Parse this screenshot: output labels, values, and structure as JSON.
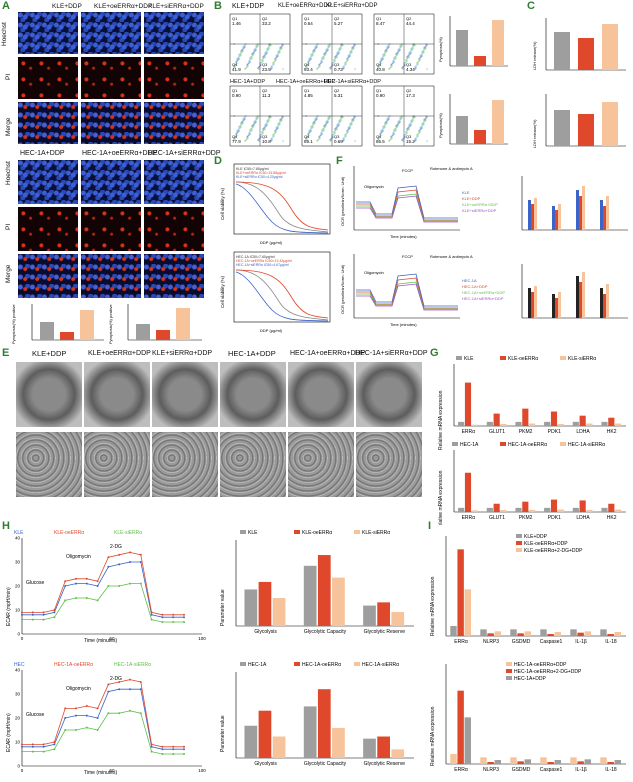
{
  "panels": {
    "A": {
      "label": "A",
      "cols_kle": [
        "KLE+DDP",
        "KLE+oeERRα+DDP",
        "KLE+siERRα+DDP"
      ],
      "cols_hec": [
        "HEC-1A+DDP",
        "HEC-1A+oeERRα+DDP",
        "HEC-1A+siERRα+DDP"
      ],
      "rows": [
        "Hoechst",
        "PI",
        "Merge"
      ],
      "bar_ylabel": "Pyroptosis(%) positive"
    },
    "B": {
      "label": "B",
      "titles_kle": [
        "KLE+DDP",
        "KLE+oeERRα+DDP",
        "KLE+siERRα+DDP"
      ],
      "titles_hec": [
        "HEC-1A+DDP",
        "HEC-1A+oeERRα+DDP",
        "HEC-1A+siERRα+DDP"
      ],
      "quads_kle": [
        [
          "1.46",
          "33.2",
          "41.9",
          "23.5"
        ],
        [
          "0.64",
          "5.27",
          "93.4",
          "0.72"
        ],
        [
          "8.47",
          "44.4",
          "40.8",
          "4.34"
        ]
      ],
      "quads_hec": [
        [
          "0.90",
          "11.3",
          "77.9",
          "10.8"
        ],
        [
          "4.85",
          "5.31",
          "89.1",
          "0.69"
        ],
        [
          "0.90",
          "17.3",
          "66.5",
          "15.2"
        ]
      ],
      "quad_names": [
        "Q1",
        "Q2",
        "Q4",
        "Q3"
      ],
      "bar_ylabel": "Pyroptosis(%)"
    },
    "C": {
      "label": "C",
      "ylabel": "LDH release(%)"
    },
    "D": {
      "label": "D",
      "ylabel": "Cell viability (%)",
      "xlabel": "DDP (μg/ml)",
      "legend_kle": [
        "KLE IC50=7.65μg/ml",
        "KLE+oeERRα IC50=15.88μg/ml",
        "KLE+siERRα IC50=4.20μg/ml"
      ],
      "legend_hec": [
        "HEC-1A IC50=7.60μg/ml",
        "HEC-1A+oeERRα IC50=13.43μg/ml",
        "HEC-1A+siERRα IC50=4.67μg/ml"
      ]
    },
    "E": {
      "label": "E",
      "titles": [
        "KLE+DDP",
        "KLE+oeERRα+DDP",
        "KLE+siERRα+DDP",
        "HEC-1A+DDP",
        "HEC-1A+oeERRα+DDP",
        "HEC-1A+siERRα+DDP"
      ]
    },
    "F": {
      "label": "F",
      "ylabel": "OCR (pmol/min/Norm. Unit)",
      "xlabel": "Time (minutes)",
      "annotations": [
        "Oligomycin",
        "FCCP",
        "Rotenone & antimycin A"
      ],
      "legend_kle": [
        "KLE",
        "KLE+DDP",
        "KLE+oeERRα+DDP",
        "KLE+siERRα+DDP"
      ],
      "legend_hec": [
        "HEC-1A",
        "HEC-1A+DDP",
        "HEC-1A+oeERRα+DDP",
        "HEC-1A+siERRα+DDP"
      ]
    },
    "G": {
      "label": "G",
      "ylabel": "Relative mRNA expression",
      "legend_kle": [
        "KLE",
        "KLE-oeERRα",
        "KLE-siERRα"
      ],
      "legend_hec": [
        "HEC-1A",
        "HEC-1A-oeERRα",
        "HEC-1A-siERRα"
      ],
      "genes": [
        "ERRα",
        "GLUT1",
        "PKM2",
        "PDK1",
        "LDHA",
        "HK2"
      ]
    },
    "H": {
      "label": "H",
      "ylabel": "ECAR (mpH/min)",
      "xlabel": "Time (minutes)",
      "legend_kle": [
        "KLE",
        "KLE-oeERRα",
        "KLE-siERRα"
      ],
      "legend_hec": [
        "HEC",
        "HEC-1A-oeERRα",
        "HEC-1A-siERRα"
      ],
      "annotations": [
        "Glucose",
        "Oligomycin",
        "2-DG"
      ],
      "bar_ylabel": "Parameter value",
      "bar_categories": [
        "Glycolysis",
        "Glycolytic Capacity",
        "Glycolytic Reserve"
      ],
      "bar_legend_kle": [
        "KLE",
        "KLE-oeERRα",
        "KLE-siERRα"
      ],
      "bar_legend_hec": [
        "HEC-1A",
        "HEC-1A-oeERRα",
        "HEC-1A-siERRα"
      ]
    },
    "I": {
      "label": "I",
      "ylabel": "Relative mRNA expression",
      "legend_kle": [
        "KLE+DDP",
        "KLE-oeERRα+DDP",
        "KLE-oeERRα+2-DG+DDP"
      ],
      "legend_hec": [
        "HEC-1A-oeERRα+DDP",
        "HEC-1A-oeERRα+2-DG+DDP",
        "HEC-1A+DDP"
      ],
      "genes": [
        "ERRα",
        "NLRP3",
        "GSDMD",
        "Caspase1",
        "IL-1β",
        "IL-18"
      ]
    }
  },
  "colors": {
    "ctrl": "#9e9e9e",
    "oe": "#e0482b",
    "si": "#f6c39a",
    "blue": "#3a64c8",
    "green": "#5fbf4a",
    "purple": "#9c56c9"
  },
  "chart_data": [
    {
      "type": "line",
      "panel": "H-top",
      "xlabel": "Time (minutes)",
      "ylabel": "ECAR (mpH/min)",
      "ylim": [
        0,
        40
      ],
      "xlim": [
        0,
        100
      ],
      "x": [
        0,
        6,
        12,
        18,
        24,
        30,
        36,
        42,
        48,
        54,
        60,
        66,
        72,
        78,
        84,
        90
      ],
      "series": [
        {
          "name": "KLE",
          "values": [
            8,
            8,
            8,
            9,
            20,
            21,
            21,
            20,
            28,
            29,
            30,
            30,
            8,
            7,
            7,
            7
          ]
        },
        {
          "name": "KLE-oeERRα",
          "values": [
            9,
            9,
            9,
            10,
            22,
            23,
            23,
            22,
            32,
            33,
            34,
            33,
            9,
            8,
            8,
            8
          ]
        },
        {
          "name": "KLE-siERRα",
          "values": [
            6,
            6,
            6,
            7,
            14,
            15,
            15,
            14,
            20,
            20,
            21,
            21,
            6,
            5,
            5,
            5
          ]
        }
      ]
    },
    {
      "type": "line",
      "panel": "H-bottom",
      "xlabel": "Time (minutes)",
      "ylabel": "ECAR (mpH/min)",
      "ylim": [
        0,
        40
      ],
      "xlim": [
        0,
        100
      ],
      "x": [
        0,
        6,
        12,
        18,
        24,
        30,
        36,
        42,
        48,
        54,
        60,
        66,
        72,
        78,
        84,
        90
      ],
      "series": [
        {
          "name": "HEC",
          "values": [
            8,
            8,
            8,
            9,
            20,
            21,
            21,
            20,
            31,
            32,
            32,
            32,
            8,
            7,
            7,
            7
          ]
        },
        {
          "name": "HEC-1A-oeERRα",
          "values": [
            9,
            9,
            9,
            10,
            24,
            24,
            25,
            24,
            34,
            35,
            36,
            35,
            9,
            8,
            8,
            8
          ]
        },
        {
          "name": "HEC-1A-siERRα",
          "values": [
            6,
            6,
            6,
            7,
            15,
            15,
            16,
            15,
            22,
            22,
            23,
            22,
            6,
            5,
            5,
            5
          ]
        }
      ]
    },
    {
      "type": "bar",
      "panel": "H-top-bars",
      "categories": [
        "Glycolysis",
        "Glycolytic Capacity",
        "Glycolytic Reserve"
      ],
      "ylabel": "Parameter value",
      "ylim": [
        0,
        400
      ],
      "series": [
        {
          "name": "KLE",
          "values": [
            170,
            280,
            95
          ]
        },
        {
          "name": "KLE-oeERRα",
          "values": [
            205,
            330,
            110
          ]
        },
        {
          "name": "KLE-siERRα",
          "values": [
            130,
            225,
            65
          ]
        }
      ]
    },
    {
      "type": "bar",
      "panel": "H-bottom-bars",
      "categories": [
        "Glycolysis",
        "Glycolytic Capacity",
        "Glycolytic Reserve"
      ],
      "ylabel": "Parameter value",
      "ylim": [
        0,
        400
      ],
      "series": [
        {
          "name": "HEC-1A",
          "values": [
            150,
            240,
            90
          ]
        },
        {
          "name": "HEC-1A-oeERRα",
          "values": [
            220,
            320,
            100
          ]
        },
        {
          "name": "HEC-1A-siERRα",
          "values": [
            100,
            140,
            40
          ]
        }
      ]
    },
    {
      "type": "bar",
      "panel": "G-top",
      "categories": [
        "ERRα",
        "GLUT1",
        "PKM2",
        "PDK1",
        "LDHA",
        "HK2"
      ],
      "ylabel": "Relative mRNA expression",
      "ylim": [
        0,
        15
      ],
      "series": [
        {
          "name": "KLE",
          "values": [
            1,
            1,
            1,
            1,
            1,
            1
          ]
        },
        {
          "name": "KLE-oeERRα",
          "values": [
            10.5,
            3,
            4.2,
            3.5,
            2.5,
            2
          ]
        },
        {
          "name": "KLE-siERRα",
          "values": [
            0.3,
            0.5,
            0.6,
            0.5,
            0.6,
            0.6
          ]
        }
      ]
    },
    {
      "type": "bar",
      "panel": "G-bottom",
      "categories": [
        "ERRα",
        "GLUT1",
        "PKM2",
        "PDK1",
        "LDHA",
        "HK2"
      ],
      "ylabel": "Relative mRNA expression",
      "ylim": [
        0,
        15
      ],
      "series": [
        {
          "name": "HEC-1A",
          "values": [
            1,
            1,
            1,
            1,
            1,
            1
          ]
        },
        {
          "name": "HEC-1A-oeERRα",
          "values": [
            9.5,
            2,
            2.5,
            3,
            2.8,
            2
          ]
        },
        {
          "name": "HEC-1A-siERRα",
          "values": [
            0.4,
            0.5,
            0.5,
            0.6,
            0.5,
            0.6
          ]
        }
      ]
    },
    {
      "type": "bar",
      "panel": "I-top",
      "categories": [
        "ERRα",
        "NLRP3",
        "GSDMD",
        "Caspase1",
        "IL-1β",
        "IL-18"
      ],
      "ylabel": "Relative mRNA expression",
      "ylim": [
        0,
        15
      ],
      "series": [
        {
          "name": "KLE+DDP",
          "values": [
            1.5,
            1,
            1,
            1,
            1,
            1
          ]
        },
        {
          "name": "KLE-oeERRα+DDP",
          "values": [
            13,
            0.4,
            0.4,
            0.3,
            0.5,
            0.3
          ]
        },
        {
          "name": "KLE-oeERRα+2-DG+DDP",
          "values": [
            7,
            0.7,
            0.7,
            0.6,
            0.7,
            0.6
          ]
        }
      ]
    },
    {
      "type": "bar",
      "panel": "I-bottom",
      "categories": [
        "ERRα",
        "NLRP3",
        "GSDMD",
        "Caspase1",
        "IL-1β",
        "IL-18"
      ],
      "ylabel": "Relative mRNA expression",
      "ylim": [
        0,
        15
      ],
      "series": [
        {
          "name": "HEC-1A-oeERRα+DDP",
          "values": [
            1.5,
            1,
            1,
            1,
            1,
            1
          ]
        },
        {
          "name": "HEC-1A-oeERRα+2-DG+DDP",
          "values": [
            11,
            0.3,
            0.4,
            0.3,
            0.4,
            0.3
          ]
        },
        {
          "name": "HEC-1A+DDP",
          "values": [
            7,
            0.6,
            0.7,
            0.6,
            0.7,
            0.6
          ]
        }
      ]
    }
  ]
}
